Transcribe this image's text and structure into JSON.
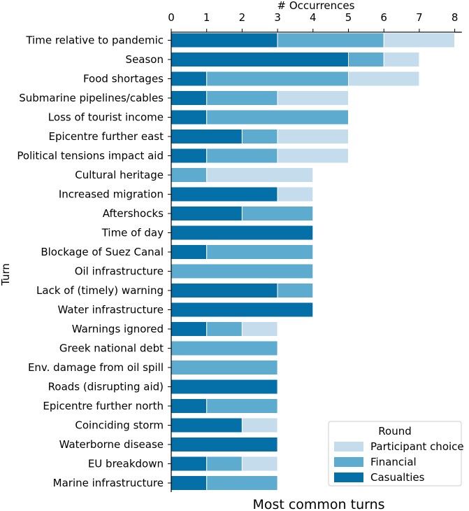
{
  "chart_data": {
    "type": "bar",
    "orientation": "horizontal",
    "stacked": true,
    "title": "Most common turns",
    "xlabel": "# Occurrences",
    "ylabel": "Turn",
    "xlim": [
      0,
      8.2
    ],
    "xticks": [
      0,
      1,
      2,
      3,
      4,
      5,
      6,
      7,
      8
    ],
    "categories": [
      "Time relative to pandemic",
      "Season",
      "Food shortages",
      "Submarine pipelines/cables",
      "Loss of tourist income",
      "Epicentre further east",
      "Political tensions impact aid",
      "Cultural heritage",
      "Increased migration",
      "Aftershocks",
      "Time of day",
      "Blockage of Suez Canal",
      "Oil infrastructure",
      "Lack of (timely) warning",
      "Water infrastructure",
      "Warnings ignored",
      "Greek national debt",
      "Env. damage from oil spill",
      "Roads (disrupting aid)",
      "Epicentre further north",
      "Coinciding storm",
      "Waterborne disease",
      "EU breakdown",
      "Marine infrastructure"
    ],
    "series": [
      {
        "name": "Casualties",
        "color": "#0570a8",
        "values": [
          3,
          5,
          1,
          1,
          1,
          2,
          1,
          0,
          3,
          2,
          4,
          1,
          0,
          3,
          4,
          1,
          0,
          0,
          3,
          1,
          2,
          3,
          1,
          1
        ]
      },
      {
        "name": "Financial",
        "color": "#5dabcf",
        "values": [
          3,
          1,
          4,
          2,
          4,
          1,
          2,
          1,
          0,
          2,
          0,
          3,
          4,
          1,
          0,
          1,
          3,
          3,
          0,
          2,
          0,
          0,
          1,
          2
        ]
      },
      {
        "name": "Participant choice",
        "color": "#c5dcec",
        "values": [
          2,
          1,
          2,
          2,
          0,
          2,
          2,
          3,
          1,
          0,
          0,
          0,
          0,
          0,
          0,
          1,
          0,
          0,
          0,
          0,
          1,
          0,
          1,
          0
        ]
      }
    ],
    "legend": {
      "title": "Round",
      "position": "bottom-right",
      "order": [
        "Participant choice",
        "Financial",
        "Casualties"
      ]
    }
  }
}
